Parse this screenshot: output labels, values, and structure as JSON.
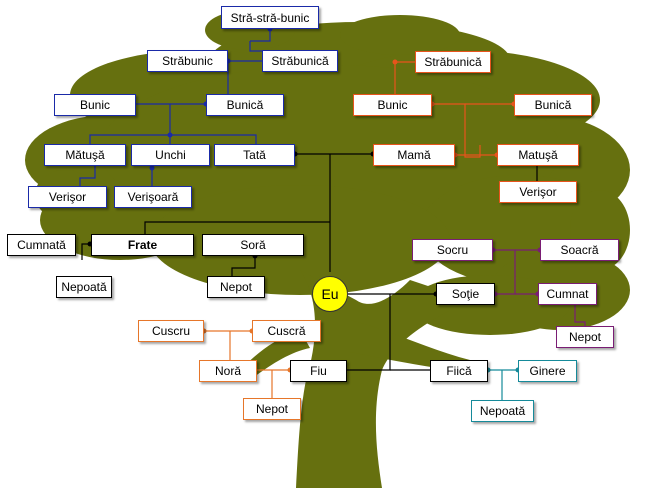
{
  "colors": {
    "tree": "#66700f",
    "blue": "#1a2aa8",
    "red": "#e8541c",
    "purple": "#7a1d74",
    "orange": "#e6762a",
    "teal": "#158a9a",
    "black": "#000000",
    "me_fill": "#ffff00"
  },
  "nodes": {
    "stra_stra_bunic": "Stră-stră-bunic",
    "strabunic_paternal": "Străbunic",
    "strabunica_paternal": "Străbunică",
    "bunic_paternal": "Bunic",
    "bunica_paternal": "Bunică",
    "matusa_paternal": "Mătuşă",
    "unchi": "Unchi",
    "tata": "Tată",
    "verisor_paternal": "Verişor",
    "verisoara": "Verişoară",
    "strabunica_maternal": "Străbunică",
    "bunic_maternal": "Bunic",
    "bunica_maternal": "Bunică",
    "mama": "Mamă",
    "matusa_maternal": "Matuşă",
    "verisor_maternal": "Verişor",
    "cumnata": "Cumnată",
    "frate": "Frate",
    "sora": "Soră",
    "nepoata_left": "Nepoată",
    "nepot_sister": "Nepot",
    "me": "Eu",
    "socru": "Socru",
    "soacra": "Soacră",
    "sotie": "Soţie",
    "cumnat": "Cumnat",
    "nepot_cumnat": "Nepot",
    "cuscru": "Cuscru",
    "cuscra": "Cuscră",
    "nora": "Noră",
    "fiu": "Fiu",
    "fiica": "Fiică",
    "ginere": "Ginere",
    "nepot_son": "Nepot",
    "nepoata_daughter": "Nepoată"
  }
}
